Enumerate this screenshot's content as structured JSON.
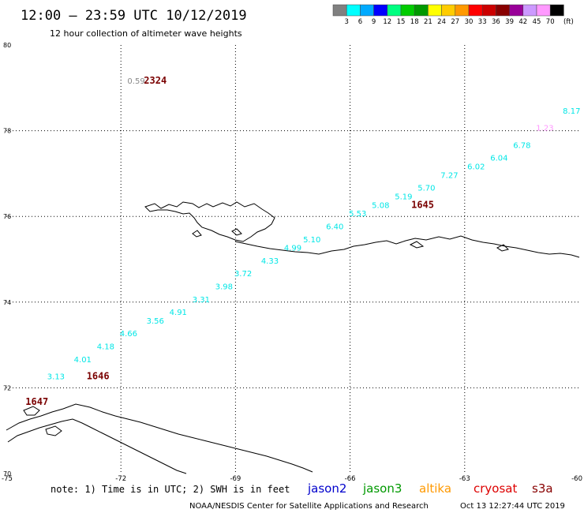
{
  "header": {
    "title": "12:00 – 23:59 UTC 10/12/2019",
    "subtitle": "12 hour collection of altimeter wave heights"
  },
  "legend": {
    "colors": [
      "#808080",
      "#00ffff",
      "#00aaff",
      "#0000ff",
      "#00ff80",
      "#00cc00",
      "#009900",
      "#ffff00",
      "#ffcc00",
      "#ff9900",
      "#ff0000",
      "#cc0000",
      "#880000",
      "#990099",
      "#cc99ff",
      "#ff99ff",
      "#000000"
    ],
    "labels": [
      "3",
      "6",
      "9",
      "12",
      "15",
      "18",
      "21",
      "24",
      "27",
      "30",
      "33",
      "36",
      "39",
      "42",
      "45",
      "70"
    ],
    "unit": "(ft)"
  },
  "axes": {
    "lat_ticks": [
      "80",
      "78",
      "76",
      "74",
      "72",
      "70"
    ],
    "lon_ticks": [
      "-75",
      "-72",
      "-69",
      "-66",
      "-63",
      "-60"
    ]
  },
  "footer": {
    "note": "note: 1) Time is in UTC; 2) SWH is in feet",
    "satellites": [
      {
        "name": "jason2",
        "color": "#0000cc"
      },
      {
        "name": "jason3",
        "color": "#009900"
      },
      {
        "name": "altika",
        "color": "#ff9900"
      },
      {
        "name": "cryosat",
        "color": "#dd0000"
      },
      {
        "name": "s3a",
        "color": "#880000"
      }
    ],
    "credit": "NOAA/NESDIS Center for Satellite Applications and Research",
    "timestamp": "Oct 13 12:27:44 UTC 2019"
  },
  "map_data": {
    "lat_range": [
      70,
      80
    ],
    "lon_range": [
      -75,
      -60
    ],
    "grid": "dotted",
    "track_color": "#00e6e6",
    "swh": [
      {
        "value": "3.13",
        "lon": -73.7,
        "lat": 72.2
      },
      {
        "value": "4.01",
        "lon": -73.0,
        "lat": 72.6
      },
      {
        "value": "4.18",
        "lon": -72.4,
        "lat": 72.9
      },
      {
        "value": "4.66",
        "lon": -71.8,
        "lat": 73.2
      },
      {
        "value": "3.56",
        "lon": -71.1,
        "lat": 73.5
      },
      {
        "value": "4.91",
        "lon": -70.5,
        "lat": 73.7
      },
      {
        "value": "3.31",
        "lon": -69.9,
        "lat": 74.0
      },
      {
        "value": "3.98",
        "lon": -69.3,
        "lat": 74.3
      },
      {
        "value": "3.72",
        "lon": -68.8,
        "lat": 74.6
      },
      {
        "value": "4.33",
        "lon": -68.1,
        "lat": 74.9
      },
      {
        "value": "4.99",
        "lon": -67.5,
        "lat": 75.2
      },
      {
        "value": "5.10",
        "lon": -67.0,
        "lat": 75.4
      },
      {
        "value": "6.40",
        "lon": -66.4,
        "lat": 75.7
      },
      {
        "value": "5.53",
        "lon": -65.8,
        "lat": 76.0
      },
      {
        "value": "5.08",
        "lon": -65.2,
        "lat": 76.2
      },
      {
        "value": "5.19",
        "lon": -64.6,
        "lat": 76.4
      },
      {
        "value": "5.70",
        "lon": -64.0,
        "lat": 76.6
      },
      {
        "value": "7.27",
        "lon": -63.4,
        "lat": 76.9
      },
      {
        "value": "6.02",
        "lon": -62.7,
        "lat": 77.1
      },
      {
        "value": "6.04",
        "lon": -62.1,
        "lat": 77.3
      },
      {
        "value": "6.78",
        "lon": -61.5,
        "lat": 77.6
      },
      {
        "value": "8.17",
        "lon": -60.2,
        "lat": 78.4
      }
    ],
    "extra_values": [
      {
        "value": "0.59",
        "color": "#888888",
        "lon": -71.6,
        "lat": 79.1
      },
      {
        "value": "1.23",
        "color": "#ff99ff",
        "lon": -60.9,
        "lat": 78.0
      }
    ],
    "pass_times": [
      {
        "label": "2324",
        "lon": -71.1,
        "lat": 79.1
      },
      {
        "label": "1645",
        "lon": -64.1,
        "lat": 76.2
      },
      {
        "label": "1646",
        "lon": -72.6,
        "lat": 72.2
      },
      {
        "label": "1647",
        "lon": -74.2,
        "lat": 71.6
      }
    ]
  }
}
